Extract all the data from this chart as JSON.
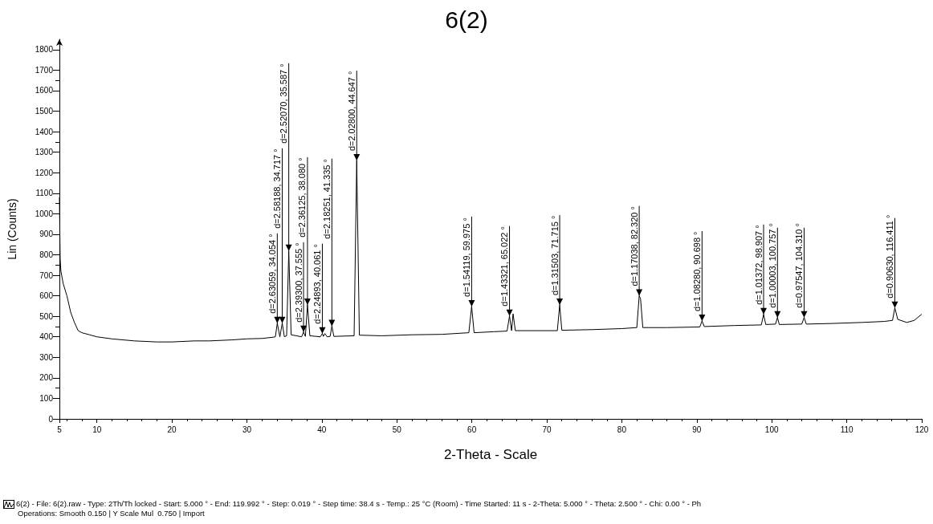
{
  "chart_data": {
    "type": "line",
    "title": "6(2)",
    "xlabel": "2-Theta - Scale",
    "ylabel": "Lin (Counts)",
    "x": [
      5.0,
      5.1,
      5.2,
      5.5,
      6.0,
      6.5,
      7.0,
      7.5,
      8.0,
      9.0,
      10.0,
      12.0,
      15.0,
      18.0,
      20.0,
      23.0,
      25.0,
      28.0,
      30.0,
      32.0,
      33.5,
      33.8,
      34.054,
      34.4,
      34.717,
      35.0,
      35.3,
      35.587,
      35.9,
      37.3,
      37.555,
      37.8,
      38.08,
      38.4,
      39.8,
      40.061,
      40.2,
      40.4,
      40.7,
      41.1,
      41.335,
      41.6,
      44.3,
      44.647,
      45.0,
      48.0,
      52.0,
      56.0,
      59.6,
      59.975,
      60.3,
      63.0,
      64.7,
      65.022,
      65.3,
      65.5,
      65.8,
      71.4,
      71.715,
      72.0,
      76.0,
      80.0,
      82.0,
      82.32,
      82.5,
      82.8,
      86.0,
      90.4,
      90.698,
      91.0,
      95.0,
      98.6,
      98.907,
      99.2,
      100.5,
      100.757,
      101.0,
      104.0,
      104.31,
      104.6,
      108.0,
      112.0,
      115.0,
      116.1,
      116.411,
      116.8,
      118.0,
      119.0,
      119.992
    ],
    "values": [
      1080,
      780,
      720,
      660,
      600,
      520,
      470,
      430,
      420,
      410,
      400,
      390,
      380,
      375,
      375,
      380,
      380,
      385,
      390,
      392,
      398,
      400,
      466,
      400,
      466,
      400,
      405,
      818,
      410,
      400,
      423,
      402,
      555,
      405,
      400,
      416,
      402,
      416,
      400,
      402,
      452,
      402,
      405,
      1259,
      408,
      405,
      410,
      412,
      420,
      548,
      420,
      425,
      428,
      502,
      430,
      512,
      430,
      430,
      555,
      432,
      435,
      440,
      445,
      600,
      585,
      445,
      445,
      448,
      477,
      450,
      455,
      458,
      509,
      460,
      462,
      494,
      460,
      462,
      494,
      462,
      465,
      470,
      475,
      480,
      541,
      485,
      470,
      480,
      510
    ],
    "color": "#000000",
    "xlim": [
      5,
      120
    ],
    "xticks": [
      5,
      10,
      20,
      30,
      40,
      50,
      60,
      70,
      80,
      90,
      100,
      110,
      120
    ],
    "ylim": [
      0,
      1850
    ],
    "yticks": [
      0,
      100,
      200,
      300,
      400,
      500,
      600,
      700,
      800,
      900,
      1000,
      1100,
      1200,
      1300,
      1400,
      1500,
      1600,
      1700,
      1800
    ],
    "grid": false,
    "marker": "none",
    "line_style": "solid",
    "annotations": [
      {
        "text": "d=2.63059, 34.054 °",
        "x": 34.054,
        "y": 466
      },
      {
        "text": "d=2.58188, 34.717 °",
        "x": 34.717,
        "y": 466
      },
      {
        "text": "d=2.52070, 35.587 °",
        "x": 35.587,
        "y": 818
      },
      {
        "text": "d=2.39300, 37.555 °",
        "x": 37.555,
        "y": 423
      },
      {
        "text": "d=2.36125, 38.080 °",
        "x": 38.08,
        "y": 555
      },
      {
        "text": "d=2.24893, 40.061 °",
        "x": 40.061,
        "y": 416
      },
      {
        "text": "d=2.18251, 41.335 °",
        "x": 41.335,
        "y": 452
      },
      {
        "text": "d=2.02800, 44.647 °",
        "x": 44.647,
        "y": 1259
      },
      {
        "text": "d=1.54119, 59.975 °",
        "x": 59.975,
        "y": 548
      },
      {
        "text": "d=1.43321, 65.022 °",
        "x": 65.022,
        "y": 502
      },
      {
        "text": "d=1.31503, 71.715 °",
        "x": 71.715,
        "y": 555
      },
      {
        "text": "d=1.17038, 82.320 °",
        "x": 82.32,
        "y": 600
      },
      {
        "text": "d=1.08280, 90.698 °",
        "x": 90.698,
        "y": 477
      },
      {
        "text": "d=1.01372, 98.907 °",
        "x": 98.907,
        "y": 509
      },
      {
        "text": "d=1.00003, 100.757 °",
        "x": 100.757,
        "y": 494
      },
      {
        "text": "d=0.97547, 104.310 °",
        "x": 104.31,
        "y": 494
      },
      {
        "text": "d=0.90630, 116.411 °",
        "x": 116.411,
        "y": 541
      },
      "6(2) - File: 6(2).raw - Type: 2Th/Th locked - Start: 5.000 ° - End: 119.992 ° - Step: 0.019 ° - Step time: 38.4 s - Temp.: 25 °C (Room) - Time Started: 11 s - 2-Theta: 5.000 ° - Theta: 2.500 ° - Chi: 0.00 ° - Ph",
      "Operations: Smooth 0.150 | Y Scale Mul  0.750 | Import"
    ]
  }
}
